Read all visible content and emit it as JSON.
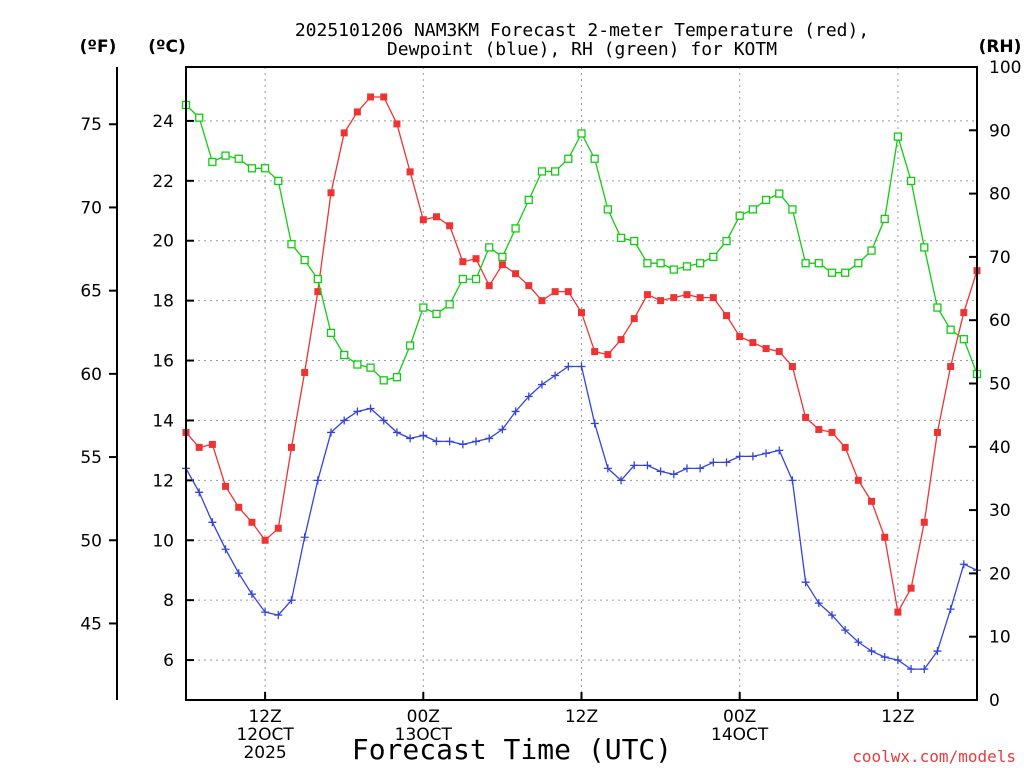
{
  "chart_data": {
    "type": "line",
    "title_line1": "2025101206 NAM3KM Forecast 2-meter Temperature (red),",
    "title_line2": "Dewpoint (blue), RH (green) for KOTM",
    "xlabel": "Forecast Time (UTC)",
    "credit": "coolwx.com/models",
    "unit_left_f": "(ºF)",
    "unit_left_c": "(ºC)",
    "unit_right": "(RH)",
    "x_unit": "forecast hour",
    "xlim": [
      0,
      60
    ],
    "celsius_axis": {
      "ylim": [
        4.667,
        25.8
      ],
      "ticks": [
        6,
        8,
        10,
        12,
        14,
        16,
        18,
        20,
        22,
        24
      ]
    },
    "fahrenheit_axis": {
      "ticks": [
        45,
        50,
        55,
        60,
        65,
        70,
        75
      ]
    },
    "rh_axis": {
      "ylim": [
        0,
        100
      ],
      "ticks": [
        0,
        10,
        20,
        30,
        40,
        50,
        60,
        70,
        80,
        90,
        100
      ]
    },
    "x_ticks": [
      {
        "hour": 6,
        "labels": [
          "12Z",
          "12OCT",
          "2025"
        ]
      },
      {
        "hour": 18,
        "labels": [
          "00Z",
          "13OCT"
        ]
      },
      {
        "hour": 30,
        "labels": [
          "12Z"
        ]
      },
      {
        "hour": 42,
        "labels": [
          "00Z",
          "14OCT"
        ]
      },
      {
        "hour": 54,
        "labels": [
          "12Z"
        ]
      }
    ],
    "series": [
      {
        "name": "2-meter Temperature",
        "units": "C",
        "color": "#ee3333",
        "marker": "filled-square",
        "values": [
          13.6,
          13.1,
          13.2,
          11.8,
          11.1,
          10.6,
          10.0,
          10.4,
          13.1,
          15.6,
          18.3,
          21.6,
          23.6,
          24.3,
          24.8,
          24.8,
          23.9,
          22.3,
          20.7,
          20.8,
          20.5,
          19.3,
          19.4,
          18.5,
          19.2,
          18.9,
          18.5,
          18.0,
          18.3,
          18.3,
          17.6,
          16.3,
          16.2,
          16.7,
          17.4,
          18.2,
          18.0,
          18.1,
          18.2,
          18.1,
          18.1,
          17.5,
          16.8,
          16.6,
          16.4,
          16.3,
          15.8,
          14.1,
          13.7,
          13.6,
          13.1,
          12.0,
          11.3,
          10.1,
          7.6,
          8.4,
          10.6,
          13.6,
          15.8,
          17.6,
          19.0
        ]
      },
      {
        "name": "Dewpoint",
        "units": "C",
        "color": "#3344dd",
        "marker": "plus",
        "values": [
          12.4,
          11.6,
          10.6,
          9.7,
          8.9,
          8.2,
          7.6,
          7.5,
          8.0,
          10.1,
          12.0,
          13.6,
          14.0,
          14.3,
          14.4,
          14.0,
          13.6,
          13.4,
          13.5,
          13.3,
          13.3,
          13.2,
          13.3,
          13.4,
          13.7,
          14.3,
          14.8,
          15.2,
          15.5,
          15.8,
          15.8,
          13.9,
          12.4,
          12.0,
          12.5,
          12.5,
          12.3,
          12.2,
          12.4,
          12.4,
          12.6,
          12.6,
          12.8,
          12.8,
          12.9,
          13.0,
          12.0,
          8.6,
          7.9,
          7.5,
          7.0,
          6.6,
          6.3,
          6.1,
          6.0,
          5.7,
          5.7,
          6.3,
          7.7,
          9.2,
          9.0
        ]
      },
      {
        "name": "Relative Humidity",
        "units": "%",
        "color": "#11cc11",
        "marker": "open-square",
        "values": [
          94,
          92,
          85,
          86,
          85.5,
          84,
          84,
          82,
          72,
          69.5,
          66.5,
          58,
          54.5,
          53,
          52.5,
          50.5,
          51,
          56,
          62,
          61,
          62.5,
          66.5,
          66.5,
          71.5,
          70,
          74.5,
          79,
          83.5,
          83.5,
          85.5,
          89.5,
          85.5,
          77.5,
          73,
          72.5,
          69,
          69,
          68,
          68.5,
          69,
          70,
          72.5,
          76.5,
          77.5,
          79,
          80,
          77.5,
          69,
          69,
          67.5,
          67.5,
          69,
          71,
          76,
          89,
          82,
          71.5,
          62,
          58.5,
          57,
          51.5
        ]
      }
    ]
  }
}
